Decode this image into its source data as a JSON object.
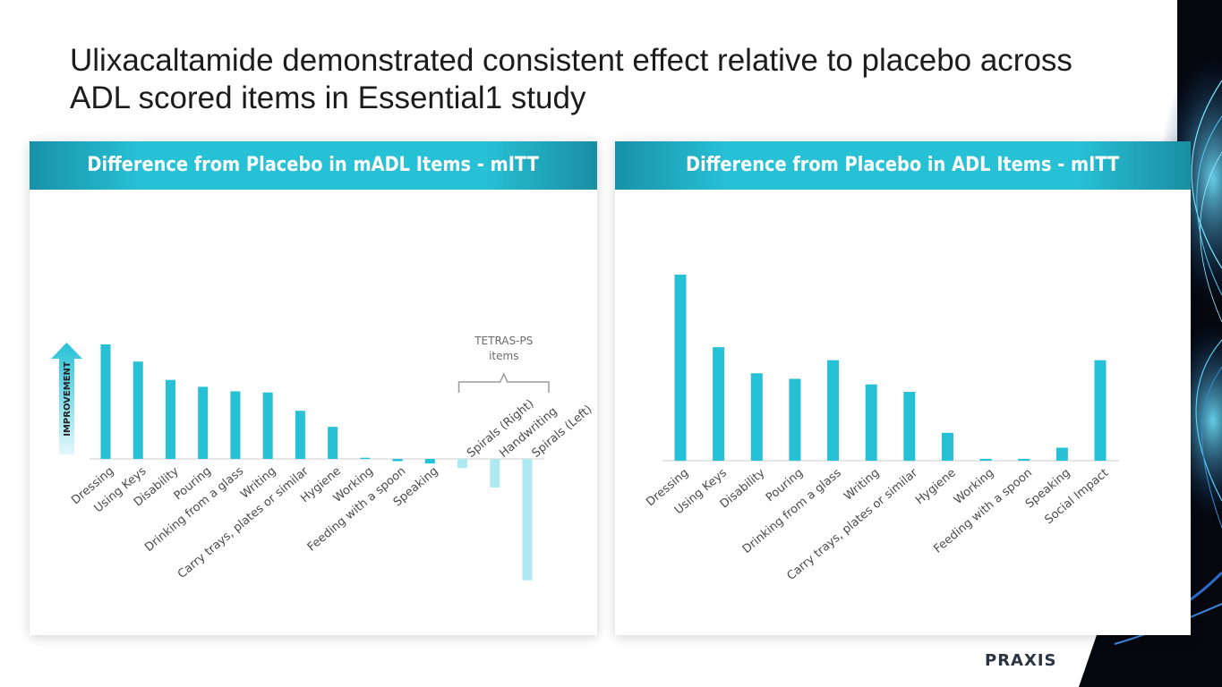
{
  "title": "Ulixacaltamide demonstrated consistent effect relative to placebo across ADL scored items in Essential1 study",
  "logo": "PRAXIS",
  "colors": {
    "bar": "#27c1d6",
    "bar_light": "#aee8f0",
    "header": "#27c1d6",
    "axis": "#cccccc"
  },
  "chart_data": [
    {
      "type": "bar",
      "title": "Difference from Placebo in mADL Items - mITT",
      "improvement_label": "IMPROVEMENT",
      "categories": [
        "Dressing",
        "Using Keys",
        "Disability",
        "Pouring",
        "Drinking from a glass",
        "Writing",
        "Carry trays, plates or similar",
        "Hygiene",
        "Working",
        "Feeding with a spoon",
        "Speaking",
        "Spirals (Right)",
        "Handwriting",
        "Spirals (Left)"
      ],
      "values": [
        1.0,
        0.85,
        0.69,
        0.63,
        0.59,
        0.58,
        0.42,
        0.28,
        0.01,
        -0.02,
        -0.04,
        -0.08,
        -0.25,
        -1.06
      ],
      "highlight": [
        false,
        false,
        false,
        false,
        false,
        false,
        false,
        false,
        false,
        false,
        false,
        true,
        true,
        true
      ],
      "group_annotation": {
        "label_line1": "TETRAS-PS",
        "label_line2": "items",
        "categories": [
          "Spirals (Right)",
          "Handwriting",
          "Spirals (Left)"
        ]
      },
      "xlabel": "",
      "ylabel": "",
      "ylim": [
        -1.06,
        1.0
      ]
    },
    {
      "type": "bar",
      "title": "Difference from Placebo in ADL Items - mITT",
      "categories": [
        "Dressing",
        "Using Keys",
        "Disability",
        "Pouring",
        "Drinking from a glass",
        "Writing",
        "Carry trays, plates or similar",
        "Hygiene",
        "Working",
        "Feeding with a spoon",
        "Speaking",
        "Social Impact"
      ],
      "values": [
        1.0,
        0.61,
        0.47,
        0.44,
        0.54,
        0.41,
        0.37,
        0.15,
        0.01,
        0.01,
        0.07,
        0.54
      ],
      "xlabel": "",
      "ylabel": "",
      "ylim": [
        0,
        1.0
      ]
    }
  ]
}
